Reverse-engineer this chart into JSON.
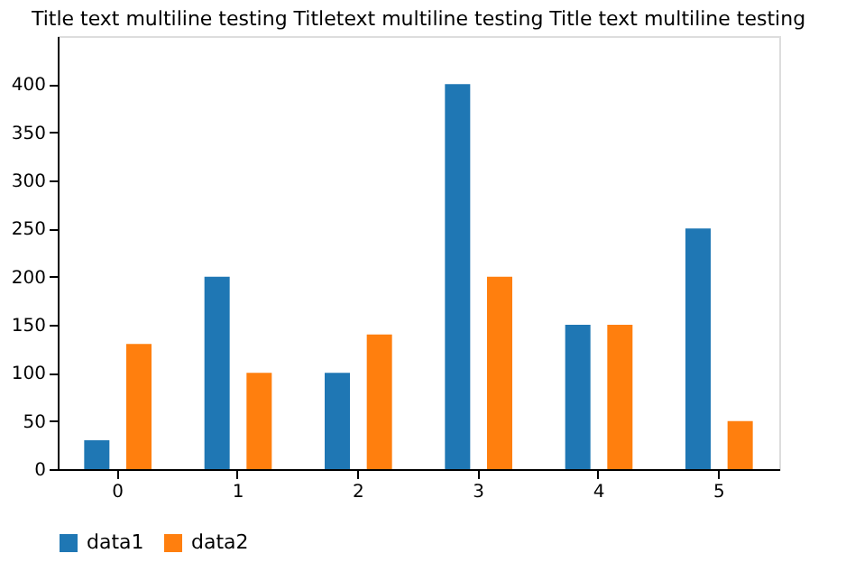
{
  "chart_data": {
    "type": "bar",
    "title": "Title text multiline testing Titletext multiline testing Title text multiline testing",
    "categories": [
      "0",
      "1",
      "2",
      "3",
      "4",
      "5"
    ],
    "series": [
      {
        "name": "data1",
        "color": "#1f77b4",
        "values": [
          30,
          200,
          100,
          400,
          150,
          250
        ]
      },
      {
        "name": "data2",
        "color": "#ff7f0e",
        "values": [
          130,
          100,
          140,
          200,
          150,
          50
        ]
      }
    ],
    "ylim": [
      0,
      450
    ],
    "yticks": [
      0,
      50,
      100,
      150,
      200,
      250,
      300,
      350,
      400
    ],
    "grid": false,
    "legend": "bottom"
  }
}
